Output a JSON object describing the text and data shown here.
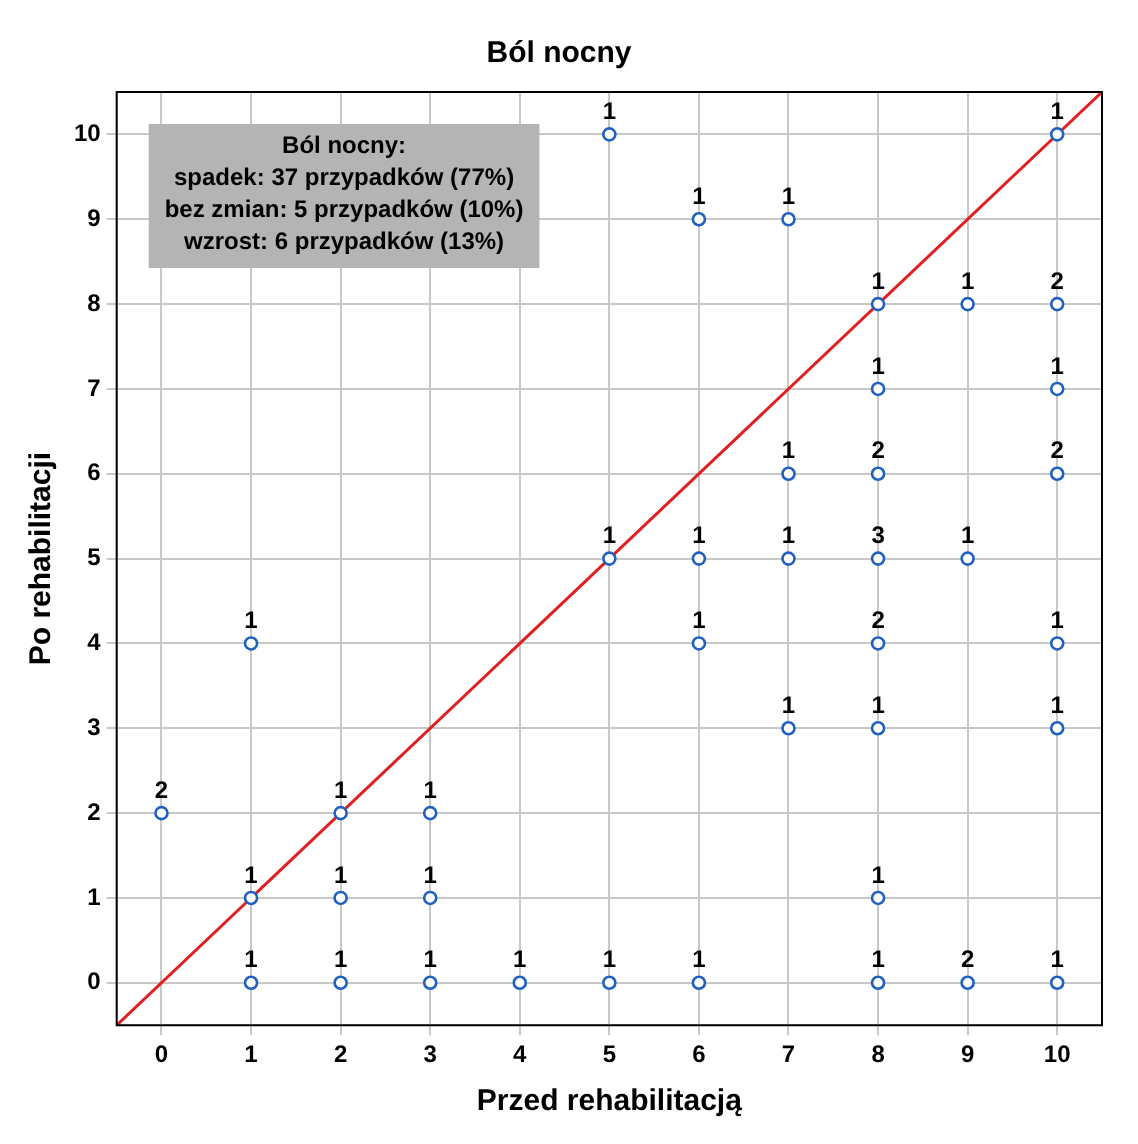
{
  "chart_data": {
    "type": "scatter",
    "title": "Ból nocny",
    "xlabel": "Przed rehabilitacją",
    "ylabel": "Po rehabilitacji",
    "xlim": [
      -0.5,
      10.5
    ],
    "ylim": [
      -0.5,
      10.5
    ],
    "xticks": [
      0,
      1,
      2,
      3,
      4,
      5,
      6,
      7,
      8,
      9,
      10
    ],
    "yticks": [
      0,
      1,
      2,
      3,
      4,
      5,
      6,
      7,
      8,
      9,
      10
    ],
    "grid": true,
    "legend": false,
    "annotations": [
      "Ból nocny:\nspadek: 37 przypadków (77%)\nbez zmian: 5 przypadków (10%)\nwzrost: 6 przypadków (13%)",
      {
        "text": "1",
        "x": 5,
        "y": 10
      },
      {
        "text": "1",
        "x": 10,
        "y": 10
      },
      {
        "text": "1",
        "x": 6,
        "y": 9
      },
      {
        "text": "1",
        "x": 7,
        "y": 9
      },
      {
        "text": "1",
        "x": 8,
        "y": 8
      },
      {
        "text": "1",
        "x": 9,
        "y": 8
      },
      {
        "text": "2",
        "x": 10,
        "y": 8
      },
      {
        "text": "1",
        "x": 8,
        "y": 7
      },
      {
        "text": "1",
        "x": 10,
        "y": 7
      },
      {
        "text": "1",
        "x": 7,
        "y": 6
      },
      {
        "text": "2",
        "x": 8,
        "y": 6
      },
      {
        "text": "2",
        "x": 10,
        "y": 6
      },
      {
        "text": "1",
        "x": 5,
        "y": 5
      },
      {
        "text": "1",
        "x": 6,
        "y": 5
      },
      {
        "text": "1",
        "x": 7,
        "y": 5
      },
      {
        "text": "3",
        "x": 8,
        "y": 5
      },
      {
        "text": "1",
        "x": 9,
        "y": 5
      },
      {
        "text": "1",
        "x": 1,
        "y": 4
      },
      {
        "text": "1",
        "x": 6,
        "y": 4
      },
      {
        "text": "2",
        "x": 8,
        "y": 4
      },
      {
        "text": "1",
        "x": 10,
        "y": 4
      },
      {
        "text": "1",
        "x": 7,
        "y": 3
      },
      {
        "text": "1",
        "x": 8,
        "y": 3
      },
      {
        "text": "1",
        "x": 10,
        "y": 3
      },
      {
        "text": "2",
        "x": 0,
        "y": 2
      },
      {
        "text": "1",
        "x": 2,
        "y": 2
      },
      {
        "text": "1",
        "x": 3,
        "y": 2
      },
      {
        "text": "1",
        "x": 1,
        "y": 1
      },
      {
        "text": "1",
        "x": 2,
        "y": 1
      },
      {
        "text": "1",
        "x": 3,
        "y": 1
      },
      {
        "text": "1",
        "x": 8,
        "y": 1
      },
      {
        "text": "1",
        "x": 1,
        "y": 0
      },
      {
        "text": "1",
        "x": 2,
        "y": 0
      },
      {
        "text": "1",
        "x": 3,
        "y": 0
      },
      {
        "text": "1",
        "x": 4,
        "y": 0
      },
      {
        "text": "1",
        "x": 5,
        "y": 0
      },
      {
        "text": "1",
        "x": 6,
        "y": 0
      },
      {
        "text": "1",
        "x": 8,
        "y": 0
      },
      {
        "text": "2",
        "x": 9,
        "y": 0
      },
      {
        "text": "1",
        "x": 10,
        "y": 0
      }
    ],
    "series": [
      {
        "color": "#2060c0",
        "marker": "circle",
        "x": [
          5,
          10,
          6,
          7,
          8,
          9,
          10,
          8,
          10,
          7,
          8,
          10,
          5,
          6,
          7,
          8,
          9,
          1,
          6,
          8,
          10,
          7,
          8,
          10,
          0,
          2,
          3,
          1,
          2,
          3,
          8,
          1,
          2,
          3,
          4,
          5,
          6,
          8,
          9,
          10
        ],
        "values": [
          10,
          10,
          9,
          9,
          8,
          8,
          8,
          7,
          7,
          6,
          6,
          6,
          5,
          5,
          5,
          5,
          5,
          4,
          4,
          4,
          4,
          3,
          3,
          3,
          2,
          2,
          2,
          1,
          1,
          1,
          1,
          0,
          0,
          0,
          0,
          0,
          0,
          0,
          0,
          0
        ]
      },
      {
        "type": "line",
        "marker": "none",
        "color": "#e02020",
        "x": [
          -0.5,
          10.5
        ],
        "values": [
          -0.5,
          10.5
        ]
      }
    ]
  }
}
